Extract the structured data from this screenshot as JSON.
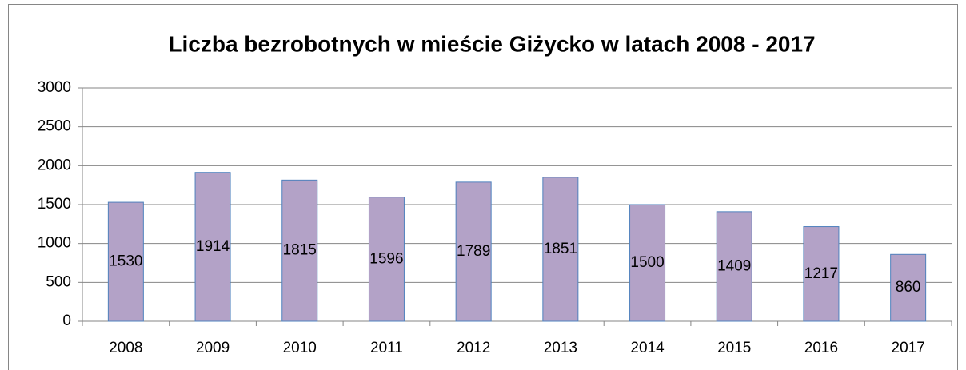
{
  "chart_data": {
    "type": "bar",
    "title": "Liczba bezrobotnych w mieście Giżycko w latach 2008 - 2017",
    "categories": [
      "2008",
      "2009",
      "2010",
      "2011",
      "2012",
      "2013",
      "2014",
      "2015",
      "2016",
      "2017"
    ],
    "values": [
      1530,
      1914,
      1815,
      1596,
      1789,
      1851,
      1500,
      1409,
      1217,
      860
    ],
    "color": "#b3a2c7",
    "edge_color": "#4f81bd",
    "ylim": [
      0,
      3000
    ],
    "yticks": [
      0,
      500,
      1000,
      1500,
      2000,
      2500,
      3000
    ],
    "grid": true
  }
}
